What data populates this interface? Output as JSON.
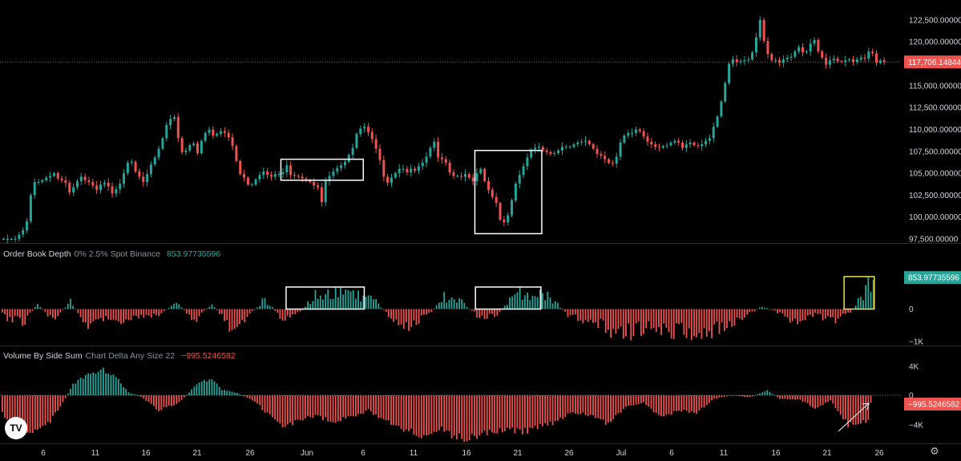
{
  "panes": {
    "orderbook": {
      "name": "Order Book Depth",
      "params": "0% 2.5% Spot Binance",
      "value": "853.97735596"
    },
    "volume": {
      "name": "Volume By Side Sum",
      "params": "Chart Delta Any Size 22",
      "value": "−995.5246582"
    }
  },
  "price_tag": "117,706.14844",
  "ob_tag": "853.97735596",
  "vol_tag": "−995.5246582",
  "logo_text": "TV",
  "settings_icon": "⚙",
  "colors": {
    "up": "#26a69a",
    "down": "#ef5350",
    "background": "#000000",
    "box": "#ffffff",
    "highlight": "#f0e442"
  },
  "chart_data": [
    {
      "type": "candlestick",
      "x_tick_labels": [
        "6",
        "11",
        "16",
        "21",
        "26",
        "Jun",
        "6",
        "11",
        "16",
        "21",
        "26",
        "Jul",
        "6",
        "11",
        "16",
        "21",
        "26"
      ],
      "y_tick_labels": [
        "122,500.00000",
        "120,000.00000",
        "117,500.00000",
        "115,000.00000",
        "112,500.00000",
        "110,000.00000",
        "107,500.00000",
        "105,000.00000",
        "102,500.00000",
        "100,000.00000",
        "97,500.00000"
      ],
      "ylim": [
        97500,
        123500
      ],
      "last_price": 117706.14844,
      "close_path": [
        97500,
        97500,
        97500,
        97500,
        98000,
        98500,
        99500,
        102500,
        104000,
        104000,
        104200,
        104500,
        104700,
        105000,
        104400,
        104200,
        103900,
        102800,
        103400,
        104100,
        104600,
        104200,
        104000,
        103600,
        103100,
        103700,
        103900,
        103500,
        102700,
        103200,
        103800,
        105000,
        106200,
        106300,
        105200,
        104600,
        104000,
        104900,
        106000,
        106800,
        107800,
        109000,
        110500,
        111200,
        111400,
        109000,
        107400,
        107600,
        108200,
        108400,
        107300,
        108700,
        109600,
        110000,
        109300,
        109500,
        109800,
        109600,
        109100,
        108100,
        106400,
        104900,
        104500,
        103700,
        103700,
        104300,
        104800,
        105200,
        104800,
        104600,
        104900,
        104900,
        105100,
        105900,
        104800,
        104700,
        104600,
        104400,
        104200,
        104000,
        103600,
        103400,
        101700,
        104100,
        104700,
        105200,
        105600,
        105900,
        106300,
        107100,
        107900,
        109500,
        110100,
        110300,
        109700,
        108900,
        107800,
        106500,
        104600,
        103900,
        104500,
        105000,
        105500,
        105500,
        105100,
        105500,
        105300,
        105800,
        106200,
        106900,
        107900,
        108600,
        106800,
        106600,
        106200,
        105100,
        104700,
        104700,
        104600,
        104900,
        104500,
        104100,
        105000,
        105500,
        104100,
        103100,
        102300,
        101600,
        99700,
        99400,
        100200,
        101900,
        103800,
        104800,
        105800,
        106800,
        107700,
        107900,
        108000,
        107600,
        107400,
        107200,
        107300,
        107600,
        108000,
        108000,
        108000,
        108300,
        108500,
        108600,
        108700,
        108300,
        107800,
        107200,
        107000,
        106600,
        106200,
        106100,
        106900,
        108500,
        109300,
        109600,
        109600,
        110000,
        109800,
        109200,
        108600,
        108300,
        108000,
        107900,
        108100,
        108200,
        108500,
        108700,
        108500,
        107900,
        108300,
        108500,
        108200,
        108100,
        108300,
        108700,
        109000,
        110300,
        111500,
        113200,
        115300,
        117500,
        118000,
        117700,
        117800,
        117900,
        118000,
        118800,
        120500,
        122500,
        120100,
        118600,
        117900,
        117900,
        117600,
        118000,
        118200,
        118300,
        118900,
        119400,
        118800,
        118900,
        119800,
        120200,
        118900,
        118200,
        117400,
        117900,
        118100,
        117800,
        117700,
        117900,
        118000,
        117700,
        118000,
        118200,
        118100,
        118900,
        118700,
        117600,
        117900,
        117700
      ],
      "highlight_boxes": [
        {
          "from": 104200,
          "to": 106600
        },
        {
          "from": 98100,
          "to": 107600
        }
      ]
    },
    {
      "type": "bar",
      "title": "Order Book Depth",
      "y_tick_labels": [
        "1K",
        "0",
        "−1K"
      ],
      "ylim": [
        -1000,
        1000
      ],
      "last_value": 853.97735596,
      "anchors": [
        [
          0,
          -200
        ],
        [
          8,
          -450
        ],
        [
          14,
          150
        ],
        [
          20,
          -350
        ],
        [
          27,
          220
        ],
        [
          34,
          -550
        ],
        [
          41,
          -300
        ],
        [
          48,
          -500
        ],
        [
          55,
          -250
        ],
        [
          62,
          -150
        ],
        [
          69,
          200
        ],
        [
          76,
          -350
        ],
        [
          83,
          150
        ],
        [
          90,
          -500
        ],
        [
          97,
          -250
        ],
        [
          104,
          300
        ],
        [
          111,
          -300
        ],
        [
          118,
          -100
        ],
        [
          125,
          500
        ],
        [
          133,
          450
        ],
        [
          140,
          400
        ],
        [
          147,
          300
        ],
        [
          154,
          -300
        ],
        [
          161,
          -500
        ],
        [
          168,
          -250
        ],
        [
          175,
          350
        ],
        [
          182,
          200
        ],
        [
          189,
          -250
        ],
        [
          196,
          -200
        ],
        [
          203,
          450
        ],
        [
          210,
          420
        ],
        [
          217,
          380
        ],
        [
          224,
          -200
        ],
        [
          231,
          -350
        ],
        [
          238,
          -500
        ],
        [
          245,
          -800
        ],
        [
          252,
          -600
        ],
        [
          259,
          -600
        ],
        [
          266,
          -750
        ],
        [
          273,
          -800
        ],
        [
          280,
          -650
        ],
        [
          287,
          -450
        ],
        [
          294,
          -250
        ],
        [
          301,
          100
        ],
        [
          308,
          -150
        ],
        [
          315,
          -400
        ],
        [
          322,
          -200
        ],
        [
          329,
          -350
        ],
        [
          336,
          -100
        ],
        [
          343,
          700
        ],
        [
          345,
          850
        ]
      ],
      "highlight_boxes": [
        "early June",
        "mid June",
        "latest"
      ]
    },
    {
      "type": "bar",
      "title": "Volume By Side Sum",
      "y_tick_labels": [
        "4K",
        "0",
        "−4K"
      ],
      "ylim": [
        -5200,
        4000
      ],
      "last_value": -995.5246582,
      "anchors": [
        [
          0,
          -2500
        ],
        [
          9,
          -5400
        ],
        [
          14,
          -4600
        ],
        [
          19,
          -3500
        ],
        [
          24,
          -1000
        ],
        [
          28,
          1500
        ],
        [
          34,
          3000
        ],
        [
          40,
          3500
        ],
        [
          45,
          2500
        ],
        [
          50,
          400
        ],
        [
          55,
          -200
        ],
        [
          62,
          -2000
        ],
        [
          70,
          -1000
        ],
        [
          78,
          1800
        ],
        [
          83,
          2200
        ],
        [
          87,
          800
        ],
        [
          93,
          300
        ],
        [
          100,
          -800
        ],
        [
          105,
          -2500
        ],
        [
          111,
          -4000
        ],
        [
          117,
          -3500
        ],
        [
          124,
          -2800
        ],
        [
          131,
          -3500
        ],
        [
          138,
          -3000
        ],
        [
          145,
          -2000
        ],
        [
          152,
          -3500
        ],
        [
          159,
          -4600
        ],
        [
          166,
          -5500
        ],
        [
          173,
          -4500
        ],
        [
          180,
          -5700
        ],
        [
          186,
          -5800
        ],
        [
          193,
          -5000
        ],
        [
          200,
          -4500
        ],
        [
          206,
          -5000
        ],
        [
          212,
          -4200
        ],
        [
          219,
          -3600
        ],
        [
          226,
          -2300
        ],
        [
          233,
          -2600
        ],
        [
          240,
          -3900
        ],
        [
          247,
          -1500
        ],
        [
          254,
          -1000
        ],
        [
          261,
          -3000
        ],
        [
          268,
          -2000
        ],
        [
          275,
          -2300
        ],
        [
          282,
          -500
        ],
        [
          289,
          0
        ],
        [
          296,
          -300
        ],
        [
          303,
          700
        ],
        [
          308,
          -500
        ],
        [
          316,
          -600
        ],
        [
          322,
          -1800
        ],
        [
          328,
          -700
        ],
        [
          335,
          -4000
        ],
        [
          342,
          -3500
        ],
        [
          346,
          -2500
        ],
        [
          350,
          -1000
        ]
      ]
    }
  ]
}
